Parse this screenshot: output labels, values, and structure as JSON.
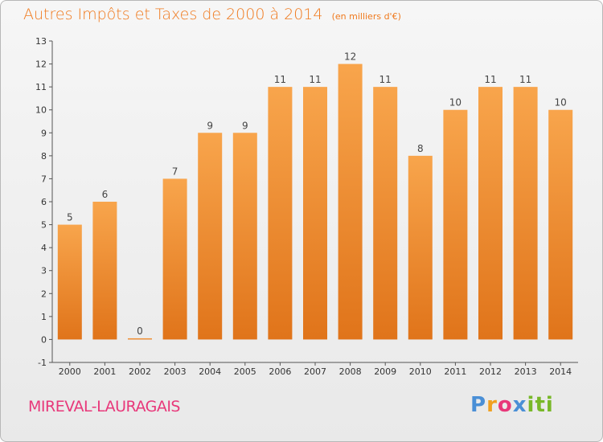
{
  "header": {
    "title": "Autres Impôts et Taxes de 2000 à 2014",
    "subtitle": "(en milliers d'€)"
  },
  "footer": {
    "commune": "MIREVAL-LAURAGAIS",
    "brand": "Proxiti"
  },
  "colors": {
    "bar_light": "#f8a54c",
    "bar_dark": "#e0741a",
    "title": "#f07a1e",
    "commune": "#e8387a"
  },
  "chart_data": {
    "type": "bar",
    "title": "Autres Impôts et Taxes de 2000 à 2014",
    "subtitle": "(en milliers d'€)",
    "categories": [
      "2000",
      "2001",
      "2002",
      "2003",
      "2004",
      "2005",
      "2006",
      "2007",
      "2008",
      "2009",
      "2010",
      "2011",
      "2012",
      "2013",
      "2014"
    ],
    "values": [
      5,
      6,
      0,
      7,
      9,
      9,
      11,
      11,
      12,
      11,
      8,
      10,
      11,
      11,
      10
    ],
    "ylim": [
      -1,
      13
    ],
    "yticks": [
      -1,
      0,
      1,
      2,
      3,
      4,
      5,
      6,
      7,
      8,
      9,
      10,
      11,
      12,
      13
    ],
    "grid": false,
    "legend": "none"
  }
}
